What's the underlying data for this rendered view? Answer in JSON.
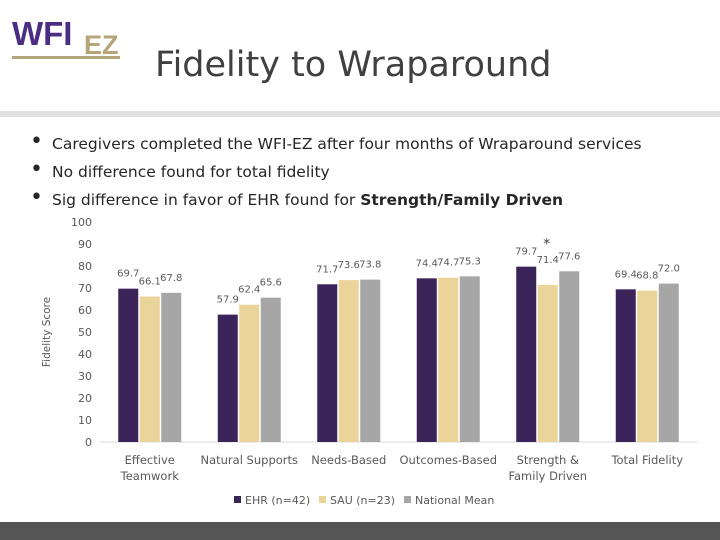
{
  "slide": {
    "title": "Fidelity to Wraparound",
    "bullets": [
      {
        "text": "Caregivers completed the WFI-EZ after four months of Wraparound services",
        "bold": ""
      },
      {
        "text": "No difference found for total fidelity",
        "bold": ""
      },
      {
        "text": "Sig difference in favor of EHR found for ",
        "bold": "Strength/Family Driven"
      }
    ]
  },
  "logo": {
    "main": "WFI",
    "sub": "EZ"
  },
  "colors": {
    "ehr": "#3b2459",
    "sau": "#ebd49a",
    "national": "#a6a6a6",
    "logo_purple": "#4b2e83",
    "logo_gold": "#b7a57a",
    "footer": "#555555"
  },
  "chart_data": {
    "type": "bar",
    "title": "",
    "xlabel": "",
    "ylabel": "Fidelity Score",
    "ylim": [
      0,
      100
    ],
    "yticks": [
      0,
      10,
      20,
      30,
      40,
      50,
      60,
      70,
      80,
      90,
      100
    ],
    "grid": false,
    "legend_position": "bottom",
    "categories": [
      [
        "Effective",
        "Teamwork"
      ],
      [
        "Natural Supports"
      ],
      [
        "Needs-Based"
      ],
      [
        "Outcomes-Based"
      ],
      [
        "Strength &",
        "Family Driven"
      ],
      [
        "Total Fidelity"
      ]
    ],
    "series": [
      {
        "name": "EHR (n=42)",
        "color_key": "ehr",
        "values": [
          69.7,
          57.9,
          71.7,
          74.4,
          79.7,
          69.4
        ]
      },
      {
        "name": "SAU (n=23)",
        "color_key": "sau",
        "values": [
          66.1,
          62.4,
          73.6,
          74.7,
          71.4,
          68.8
        ]
      },
      {
        "name": "National Mean",
        "color_key": "national",
        "values": [
          67.8,
          65.6,
          73.8,
          75.3,
          77.6,
          72.0
        ]
      }
    ],
    "value_labels": [
      [
        "69.7",
        "57.9",
        "71.7",
        "74.4",
        "79.7",
        "69.4"
      ],
      [
        "66.1",
        "62.4",
        "73.6",
        "74.7",
        "71.4",
        "68.8"
      ],
      [
        "67.8",
        "65.6",
        "73.8",
        "75.3",
        "77.6",
        "72.0"
      ]
    ],
    "annotations": [
      {
        "category_index": 4,
        "text": "*"
      }
    ]
  }
}
